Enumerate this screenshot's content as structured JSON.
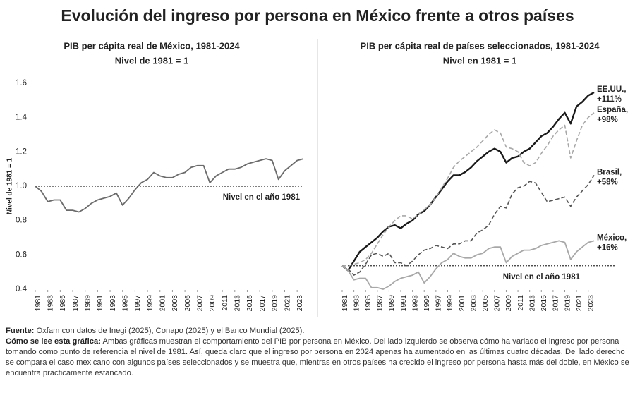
{
  "title": "Evolución del ingreso por persona en México frente a otros países",
  "chart_data": [
    {
      "type": "line",
      "title": "PIB per cápita real de México, 1981-2024",
      "subtitle": "Nivel de 1981 = 1",
      "y_label": "Nivel de 1981 = 1",
      "x": [
        1981,
        1982,
        1983,
        1984,
        1985,
        1986,
        1987,
        1988,
        1989,
        1990,
        1991,
        1992,
        1993,
        1994,
        1995,
        1996,
        1997,
        1998,
        1999,
        2000,
        2001,
        2002,
        2003,
        2004,
        2005,
        2006,
        2007,
        2008,
        2009,
        2010,
        2011,
        2012,
        2013,
        2014,
        2015,
        2016,
        2017,
        2018,
        2019,
        2020,
        2021,
        2022,
        2023,
        2024
      ],
      "values": [
        1.0,
        0.97,
        0.91,
        0.92,
        0.92,
        0.86,
        0.86,
        0.85,
        0.87,
        0.9,
        0.92,
        0.93,
        0.94,
        0.96,
        0.89,
        0.93,
        0.98,
        1.02,
        1.04,
        1.08,
        1.06,
        1.05,
        1.05,
        1.07,
        1.08,
        1.11,
        1.12,
        1.12,
        1.02,
        1.06,
        1.08,
        1.1,
        1.1,
        1.11,
        1.13,
        1.14,
        1.15,
        1.16,
        1.15,
        1.04,
        1.09,
        1.12,
        1.15,
        1.16
      ],
      "color": "#6b6b6b",
      "xlim": [
        1981,
        2024
      ],
      "xticks": [
        1981,
        1983,
        1985,
        1987,
        1989,
        1991,
        1993,
        1995,
        1997,
        1999,
        2001,
        2003,
        2005,
        2007,
        2009,
        2011,
        2013,
        2015,
        2017,
        2019,
        2021,
        2023
      ],
      "ylim": [
        0.4,
        1.6
      ],
      "yticks": [
        0.4,
        0.6,
        0.8,
        {
          "value": 1,
          "label": "1.0"
        },
        1.2,
        1.4,
        1.6
      ],
      "reference_line": {
        "value": 1,
        "label": "Nivel en el año 1981"
      }
    },
    {
      "type": "line",
      "title": "PIB per cápita real de países seleccionados, 1981-2024",
      "subtitle": "Nivel en 1981 = 1",
      "x": [
        1981,
        1982,
        1983,
        1984,
        1985,
        1986,
        1987,
        1988,
        1989,
        1990,
        1991,
        1992,
        1993,
        1994,
        1995,
        1996,
        1997,
        1998,
        1999,
        2000,
        2001,
        2002,
        2003,
        2004,
        2005,
        2006,
        2007,
        2008,
        2009,
        2010,
        2011,
        2012,
        2013,
        2014,
        2015,
        2016,
        2017,
        2018,
        2019,
        2020,
        2021,
        2022,
        2023,
        2024
      ],
      "series": [
        {
          "name": "EE.UU.,",
          "change_label": "+111%",
          "color": "#1a1a1a",
          "dash": false,
          "width": 2.4,
          "values": [
            1.0,
            0.97,
            1.03,
            1.09,
            1.12,
            1.15,
            1.18,
            1.22,
            1.25,
            1.26,
            1.24,
            1.27,
            1.29,
            1.33,
            1.35,
            1.39,
            1.44,
            1.49,
            1.54,
            1.58,
            1.58,
            1.6,
            1.63,
            1.67,
            1.7,
            1.73,
            1.75,
            1.73,
            1.66,
            1.69,
            1.7,
            1.73,
            1.75,
            1.79,
            1.83,
            1.85,
            1.89,
            1.94,
            1.98,
            1.91,
            2.02,
            2.05,
            2.09,
            2.11
          ]
        },
        {
          "name": "España,",
          "change_label": "+98%",
          "color": "#a8a8a8",
          "dash": true,
          "width": 1.6,
          "values": [
            1.0,
            1.0,
            1.01,
            1.02,
            1.04,
            1.08,
            1.14,
            1.2,
            1.25,
            1.29,
            1.32,
            1.32,
            1.3,
            1.33,
            1.36,
            1.39,
            1.44,
            1.5,
            1.56,
            1.63,
            1.67,
            1.7,
            1.73,
            1.76,
            1.8,
            1.84,
            1.87,
            1.85,
            1.76,
            1.75,
            1.73,
            1.66,
            1.64,
            1.66,
            1.72,
            1.77,
            1.83,
            1.87,
            1.9,
            1.69,
            1.8,
            1.9,
            1.95,
            1.98
          ]
        },
        {
          "name": "Brasil,",
          "change_label": "+58%",
          "color": "#555555",
          "dash": true,
          "width": 1.6,
          "values": [
            1.0,
            0.98,
            0.94,
            0.96,
            1.01,
            1.07,
            1.08,
            1.06,
            1.08,
            1.02,
            1.02,
            1.0,
            1.03,
            1.07,
            1.1,
            1.11,
            1.13,
            1.12,
            1.11,
            1.14,
            1.14,
            1.16,
            1.16,
            1.21,
            1.23,
            1.26,
            1.33,
            1.38,
            1.37,
            1.46,
            1.5,
            1.51,
            1.54,
            1.53,
            1.47,
            1.41,
            1.42,
            1.43,
            1.44,
            1.38,
            1.44,
            1.48,
            1.52,
            1.58
          ]
        },
        {
          "name": "México,",
          "change_label": "+16%",
          "color": "#a8a8a8",
          "dash": false,
          "width": 1.8,
          "values": [
            1.0,
            0.97,
            0.91,
            0.92,
            0.92,
            0.86,
            0.86,
            0.85,
            0.87,
            0.9,
            0.92,
            0.93,
            0.94,
            0.96,
            0.89,
            0.93,
            0.98,
            1.02,
            1.04,
            1.08,
            1.06,
            1.05,
            1.05,
            1.07,
            1.08,
            1.11,
            1.12,
            1.12,
            1.02,
            1.06,
            1.08,
            1.1,
            1.1,
            1.11,
            1.13,
            1.14,
            1.15,
            1.16,
            1.15,
            1.04,
            1.09,
            1.12,
            1.15,
            1.16
          ]
        }
      ],
      "xlim": [
        1981,
        2024
      ],
      "xticks": [
        1981,
        1983,
        1985,
        1987,
        1989,
        1991,
        1993,
        1995,
        1997,
        1999,
        2001,
        2003,
        2005,
        2007,
        2009,
        2011,
        2013,
        2015,
        2017,
        2019,
        2021,
        2023
      ],
      "ylim": [
        0.85,
        2.25
      ],
      "reference_line": {
        "value": 1,
        "label": "Nivel en el año 1981"
      }
    }
  ],
  "notes": [
    {
      "label": "Fuente:",
      "text": "Oxfam con datos de Inegi (2025), Conapo (2025) y el Banco Mundial (2025)."
    },
    {
      "label": "Cómo se lee esta gráfica:",
      "text": "Ambas gráficas muestran el comportamiento del PIB por persona en México. Del lado izquierdo se observa cómo ha variado el ingreso por persona tomando como punto de referencia el nivel de 1981. Así, queda claro que el ingreso por persona en 2024 apenas ha aumentado en las últimas cuatro décadas. Del lado derecho se compara el caso mexicano con algunos países seleccionados y se muestra que, mientras en otros países ha crecido el ingreso por persona hasta más del doble, en México se encuentra prácticamente estancado."
    }
  ]
}
